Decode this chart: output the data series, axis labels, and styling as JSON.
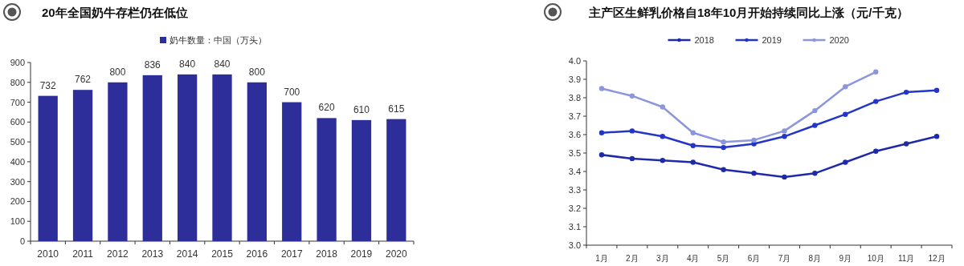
{
  "chart_data": [
    {
      "type": "bar",
      "title": "20年全国奶牛存栏仍在低位",
      "categories": [
        "2010",
        "2011",
        "2012",
        "2013",
        "2014",
        "2015",
        "2016",
        "2017",
        "2018",
        "2019",
        "2020"
      ],
      "series": [
        {
          "name": "奶牛数量：中国（万头）",
          "color": "#2e2e9a",
          "values": [
            732,
            762,
            800,
            836,
            840,
            840,
            800,
            700,
            620,
            610,
            615
          ]
        }
      ],
      "ylim": [
        0,
        900
      ],
      "yticks": [
        0,
        100,
        200,
        300,
        400,
        500,
        600,
        700,
        800,
        900
      ],
      "data_labels": true,
      "legend": "top",
      "grid": false
    },
    {
      "type": "line",
      "title": "主产区生鲜乳价格自18年10月开始持续同比上涨（元/千克）",
      "categories": [
        "1月",
        "2月",
        "3月",
        "4月",
        "5月",
        "6月",
        "7月",
        "8月",
        "9月",
        "10月",
        "11月",
        "12月"
      ],
      "series": [
        {
          "name": "2018",
          "color": "#1f2aa6",
          "values": [
            3.49,
            3.47,
            3.46,
            3.45,
            3.41,
            3.39,
            3.37,
            3.39,
            3.45,
            3.51,
            3.55,
            3.59
          ]
        },
        {
          "name": "2019",
          "color": "#2436c8",
          "values": [
            3.61,
            3.62,
            3.59,
            3.54,
            3.53,
            3.55,
            3.59,
            3.65,
            3.71,
            3.78,
            3.83,
            3.84
          ]
        },
        {
          "name": "2020",
          "color": "#8c96dd",
          "values": [
            3.85,
            3.81,
            3.75,
            3.61,
            3.56,
            3.57,
            3.62,
            3.73,
            3.86,
            3.94,
            null,
            null
          ]
        }
      ],
      "ylim": [
        3,
        4
      ],
      "yticks": [
        {
          "value": 3,
          "label": "3.0"
        },
        {
          "value": 3.1,
          "label": "3.1"
        },
        {
          "value": 3.2,
          "label": "3.2"
        },
        {
          "value": 3.3,
          "label": "3.3"
        },
        {
          "value": 3.4,
          "label": "3.4"
        },
        {
          "value": 3.5,
          "label": "3.5"
        },
        {
          "value": 3.6,
          "label": "3.6"
        },
        {
          "value": 3.7,
          "label": "3.7"
        },
        {
          "value": 3.8,
          "label": "3.8"
        },
        {
          "value": 3.9,
          "label": "3.9"
        },
        {
          "value": 4,
          "label": "4.0"
        }
      ],
      "legend": "top",
      "marker": "circle",
      "line_style": "solid",
      "grid": false
    }
  ]
}
